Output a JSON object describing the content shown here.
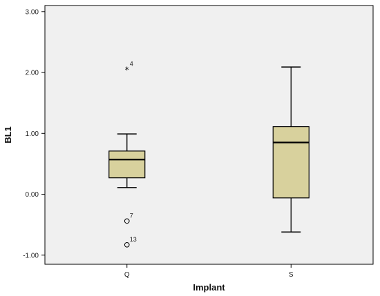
{
  "chart_data": {
    "type": "boxplot",
    "xlabel": "Implant",
    "ylabel": "BL1",
    "categories": [
      "Q",
      "S"
    ],
    "ylim": [
      -1.15,
      3.1
    ],
    "yticks": [
      "-1.00",
      "0.00",
      "1.00",
      "2.00",
      "3.00"
    ],
    "ytick_values": [
      -1,
      0,
      1,
      2,
      3
    ],
    "grid": false,
    "colors": {
      "plot_bg": "#f0f0f0",
      "box_fill": "#d8d19d",
      "stroke": "#000000"
    },
    "boxes": [
      {
        "category": "Q",
        "whisker_low": 0.11,
        "q1": 0.27,
        "median": 0.57,
        "q3": 0.71,
        "whisker_high": 0.99,
        "outliers": [
          {
            "value": 2.05,
            "label": "4",
            "marker": "star"
          },
          {
            "value": -0.44,
            "label": "7",
            "marker": "circle"
          },
          {
            "value": -0.83,
            "label": "13",
            "marker": "circle"
          }
        ]
      },
      {
        "category": "S",
        "whisker_low": -0.62,
        "q1": -0.06,
        "median": 0.85,
        "q3": 1.11,
        "whisker_high": 2.09,
        "outliers": []
      }
    ]
  }
}
